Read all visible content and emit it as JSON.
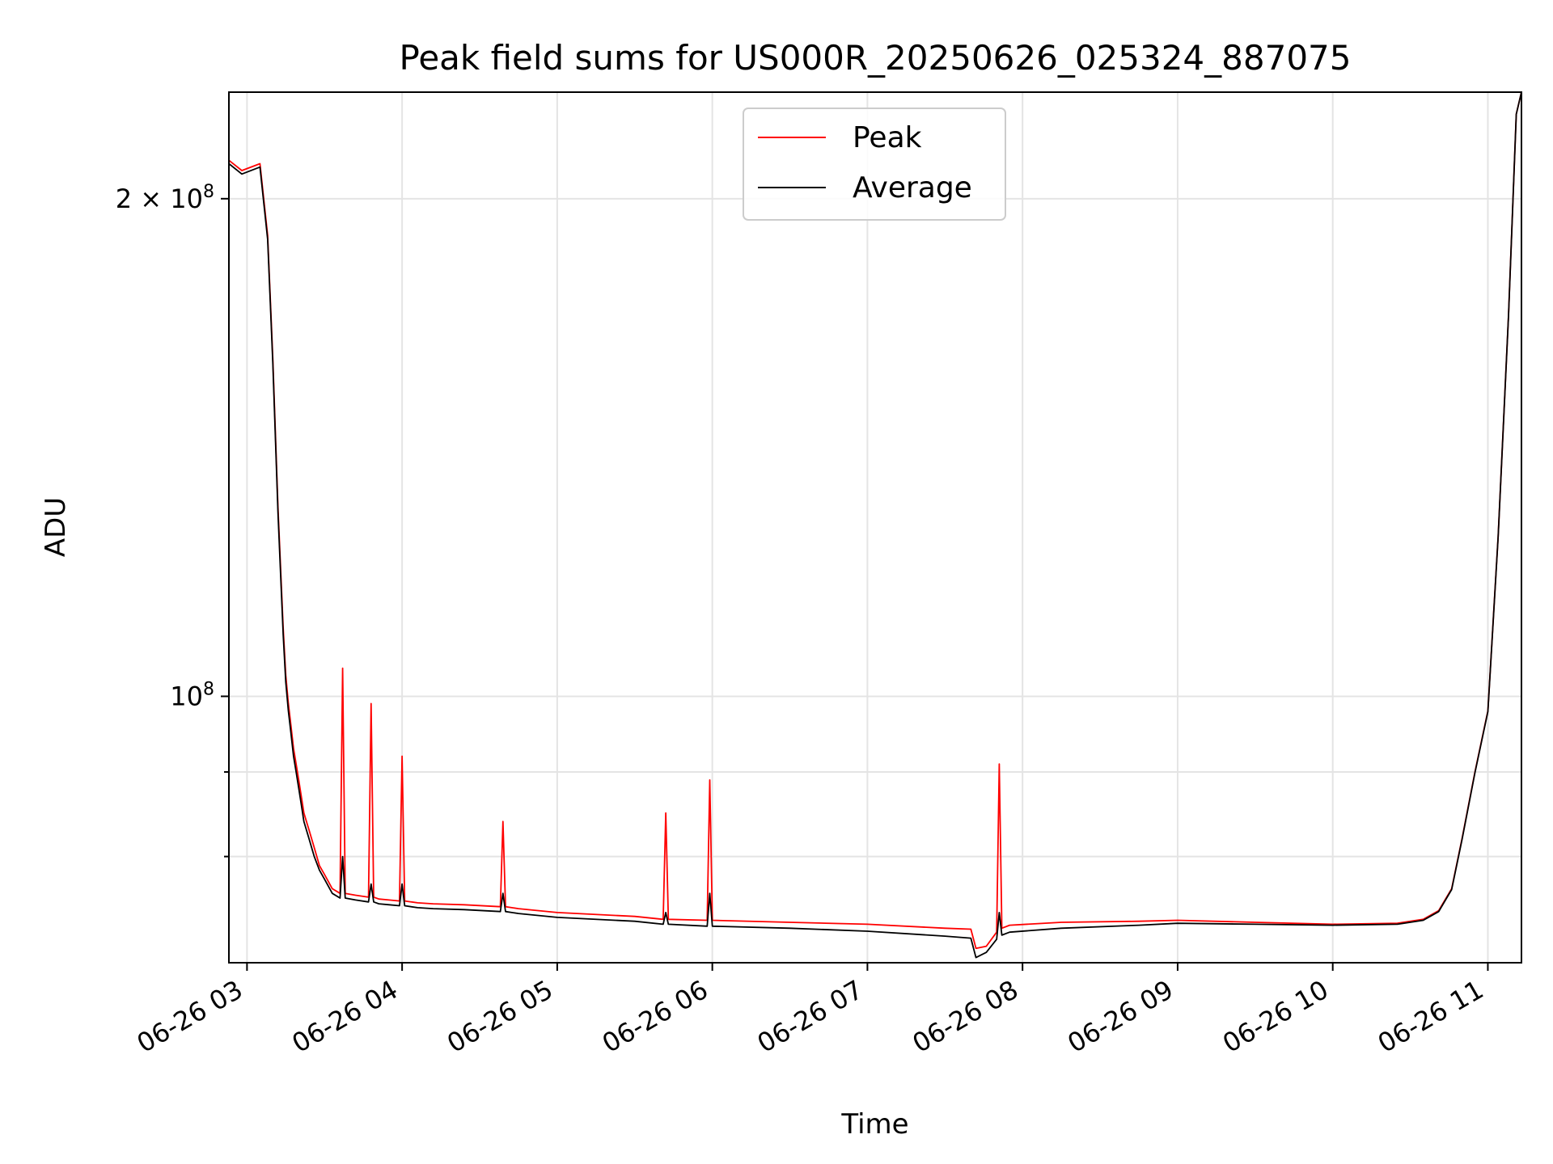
{
  "chart_data": {
    "type": "line",
    "title": "Peak field sums for US000R_20250626_025324_887075",
    "xlabel": "Time",
    "ylabel": "ADU",
    "y_scale": "log",
    "grid": true,
    "legend_position": "upper center",
    "xlim": [
      "2025-06-26 02:53",
      "2025-06-26 11:13"
    ],
    "ylim": [
      69000000,
      232000000
    ],
    "x_ticks": [
      "06-26 03",
      "06-26 04",
      "06-26 05",
      "06-26 06",
      "06-26 07",
      "06-26 08",
      "06-26 09",
      "06-26 10",
      "06-26 11"
    ],
    "x_tick_times": [
      "2025-06-26 03:00",
      "2025-06-26 04:00",
      "2025-06-26 05:00",
      "2025-06-26 06:00",
      "2025-06-26 07:00",
      "2025-06-26 08:00",
      "2025-06-26 09:00",
      "2025-06-26 10:00",
      "2025-06-26 11:00"
    ],
    "y_ticks": [
      {
        "value": 200000000,
        "mantissa": "2",
        "times": "×",
        "base": "10",
        "exp": "8"
      },
      {
        "value": 100000000,
        "mantissa": "",
        "times": "",
        "base": "10",
        "exp": "8"
      }
    ],
    "y_minor_ticks": [
      80000000,
      90000000
    ],
    "series": [
      {
        "name": "Peak",
        "color": "#ff0000",
        "x": [
          "2025-06-26 02:53",
          "2025-06-26 02:58",
          "2025-06-26 03:05",
          "2025-06-26 03:08",
          "2025-06-26 03:10",
          "2025-06-26 03:12",
          "2025-06-26 03:14",
          "2025-06-26 03:15",
          "2025-06-26 03:16",
          "2025-06-26 03:17",
          "2025-06-26 03:18",
          "2025-06-26 03:19",
          "2025-06-26 03:20",
          "2025-06-26 03:21",
          "2025-06-26 03:22",
          "2025-06-26 03:24",
          "2025-06-26 03:26",
          "2025-06-26 03:28",
          "2025-06-26 03:30",
          "2025-06-26 03:33",
          "2025-06-26 03:36",
          "2025-06-26 03:37",
          "2025-06-26 03:38",
          "2025-06-26 03:42",
          "2025-06-26 03:47",
          "2025-06-26 03:48",
          "2025-06-26 03:49",
          "2025-06-26 03:51",
          "2025-06-26 03:55",
          "2025-06-26 03:59",
          "2025-06-26 04:00",
          "2025-06-26 04:01",
          "2025-06-26 04:06",
          "2025-06-26 04:12",
          "2025-06-26 04:24",
          "2025-06-26 04:38",
          "2025-06-26 04:39",
          "2025-06-26 04:40",
          "2025-06-26 04:45",
          "2025-06-26 05:00",
          "2025-06-26 05:30",
          "2025-06-26 05:41",
          "2025-06-26 05:42",
          "2025-06-26 05:43",
          "2025-06-26 05:58",
          "2025-06-26 05:59",
          "2025-06-26 06:00",
          "2025-06-26 06:30",
          "2025-06-26 07:00",
          "2025-06-26 07:30",
          "2025-06-26 07:40",
          "2025-06-26 07:42",
          "2025-06-26 07:46",
          "2025-06-26 07:50",
          "2025-06-26 07:51",
          "2025-06-26 07:52",
          "2025-06-26 07:55",
          "2025-06-26 08:15",
          "2025-06-26 08:45",
          "2025-06-26 09:00",
          "2025-06-26 09:30",
          "2025-06-26 10:00",
          "2025-06-26 10:25",
          "2025-06-26 10:35",
          "2025-06-26 10:41",
          "2025-06-26 10:46",
          "2025-06-26 10:50",
          "2025-06-26 10:55",
          "2025-06-26 11:00",
          "2025-06-26 11:04",
          "2025-06-26 11:08",
          "2025-06-26 11:11",
          "2025-06-26 11:13"
        ],
        "y": [
          211000000,
          208000000,
          210000000,
          190000000,
          160000000,
          130000000,
          110000000,
          103000000,
          99000000,
          96000000,
          93000000,
          91000000,
          89000000,
          87000000,
          85000000,
          83000000,
          81000000,
          79000000,
          78000000,
          76500000,
          76000000,
          104000000,
          76000000,
          75800000,
          75600000,
          99000000,
          75600000,
          75400000,
          75300000,
          75200000,
          92000000,
          75200000,
          75000000,
          74900000,
          74800000,
          74600000,
          84000000,
          74600000,
          74400000,
          74000000,
          73600000,
          73300000,
          85000000,
          73300000,
          73200000,
          89000000,
          73200000,
          73000000,
          72800000,
          72400000,
          72300000,
          70400000,
          70600000,
          72000000,
          91000000,
          72400000,
          72700000,
          73000000,
          73100000,
          73200000,
          73000000,
          72800000,
          72900000,
          73300000,
          74200000,
          76500000,
          82000000,
          90000000,
          98000000,
          125000000,
          170000000,
          225000000,
          232000000
        ]
      },
      {
        "name": "Average",
        "color": "#000000",
        "x": [
          "2025-06-26 02:53",
          "2025-06-26 02:58",
          "2025-06-26 03:05",
          "2025-06-26 03:08",
          "2025-06-26 03:10",
          "2025-06-26 03:12",
          "2025-06-26 03:14",
          "2025-06-26 03:15",
          "2025-06-26 03:16",
          "2025-06-26 03:17",
          "2025-06-26 03:18",
          "2025-06-26 03:19",
          "2025-06-26 03:20",
          "2025-06-26 03:21",
          "2025-06-26 03:22",
          "2025-06-26 03:24",
          "2025-06-26 03:26",
          "2025-06-26 03:28",
          "2025-06-26 03:30",
          "2025-06-26 03:33",
          "2025-06-26 03:36",
          "2025-06-26 03:37",
          "2025-06-26 03:38",
          "2025-06-26 03:42",
          "2025-06-26 03:47",
          "2025-06-26 03:48",
          "2025-06-26 03:49",
          "2025-06-26 03:51",
          "2025-06-26 03:55",
          "2025-06-26 03:59",
          "2025-06-26 04:00",
          "2025-06-26 04:01",
          "2025-06-26 04:06",
          "2025-06-26 04:12",
          "2025-06-26 04:24",
          "2025-06-26 04:38",
          "2025-06-26 04:39",
          "2025-06-26 04:40",
          "2025-06-26 04:45",
          "2025-06-26 05:00",
          "2025-06-26 05:30",
          "2025-06-26 05:41",
          "2025-06-26 05:42",
          "2025-06-26 05:43",
          "2025-06-26 05:58",
          "2025-06-26 05:59",
          "2025-06-26 06:00",
          "2025-06-26 06:30",
          "2025-06-26 07:00",
          "2025-06-26 07:30",
          "2025-06-26 07:40",
          "2025-06-26 07:42",
          "2025-06-26 07:46",
          "2025-06-26 07:50",
          "2025-06-26 07:51",
          "2025-06-26 07:52",
          "2025-06-26 07:55",
          "2025-06-26 08:15",
          "2025-06-26 08:45",
          "2025-06-26 09:00",
          "2025-06-26 09:30",
          "2025-06-26 10:00",
          "2025-06-26 10:25",
          "2025-06-26 10:35",
          "2025-06-26 10:41",
          "2025-06-26 10:46",
          "2025-06-26 10:50",
          "2025-06-26 10:55",
          "2025-06-26 11:00",
          "2025-06-26 11:04",
          "2025-06-26 11:08",
          "2025-06-26 11:11",
          "2025-06-26 11:13"
        ],
        "y": [
          210000000,
          207000000,
          209000000,
          189000000,
          159000000,
          129000000,
          109000000,
          102000000,
          98000000,
          95000000,
          92000000,
          90000000,
          88000000,
          86000000,
          84000000,
          82000000,
          80000000,
          78500000,
          77500000,
          76000000,
          75500000,
          80000000,
          75500000,
          75300000,
          75100000,
          77000000,
          75100000,
          74900000,
          74800000,
          74700000,
          77000000,
          74700000,
          74500000,
          74400000,
          74300000,
          74100000,
          76000000,
          74100000,
          73900000,
          73500000,
          73100000,
          72800000,
          74000000,
          72800000,
          72600000,
          76000000,
          72600000,
          72400000,
          72100000,
          71600000,
          71400000,
          69500000,
          70000000,
          71300000,
          74000000,
          71700000,
          72000000,
          72400000,
          72700000,
          72900000,
          72800000,
          72700000,
          72800000,
          73200000,
          74100000,
          76400000,
          81900000,
          89900000,
          97900000,
          124900000,
          169900000,
          225000000,
          232000000
        ]
      }
    ]
  }
}
